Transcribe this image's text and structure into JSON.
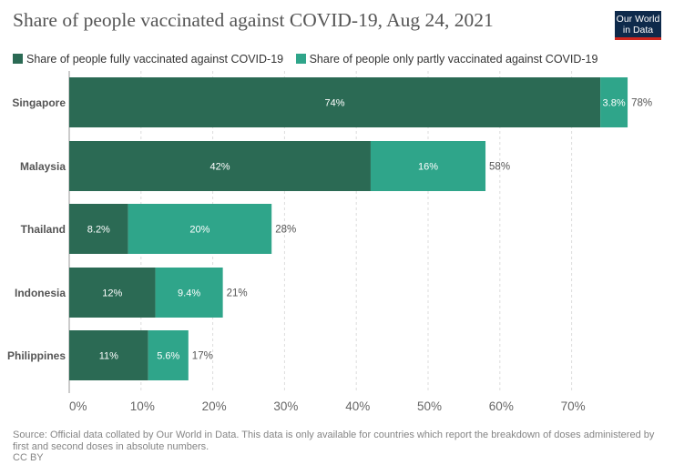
{
  "title": "Share of people vaccinated against COVID-19, Aug 24, 2021",
  "logo": {
    "line1": "Our World",
    "line2": "in Data"
  },
  "footer": {
    "source": "Source: Official data collated by Our World in Data. This data is only available for countries which report the breakdown of doses administered by first and second doses in absolute numbers.",
    "license": "CC BY"
  },
  "colors": {
    "fully": "#2b6a54",
    "partly": "#2fa58a",
    "grid": "#dddddd",
    "axis": "#666666"
  },
  "chart_data": {
    "type": "bar",
    "orientation": "horizontal",
    "stacked": true,
    "categories": [
      "Singapore",
      "Malaysia",
      "Thailand",
      "Indonesia",
      "Philippines"
    ],
    "series": [
      {
        "name": "Share of people fully vaccinated against COVID-19",
        "values": [
          74,
          42,
          8.2,
          12,
          11
        ],
        "labels": [
          "74%",
          "42%",
          "8.2%",
          "12%",
          "11%"
        ]
      },
      {
        "name": "Share of people only partly vaccinated against COVID-19",
        "values": [
          3.8,
          16,
          20,
          9.4,
          5.6
        ],
        "labels": [
          "3.8%",
          "16%",
          "20%",
          "9.4%",
          "5.6%"
        ]
      }
    ],
    "totals": [
      78,
      58,
      28,
      21,
      17
    ],
    "total_labels": [
      "78%",
      "58%",
      "28%",
      "21%",
      "17%"
    ],
    "xlim": [
      0,
      80
    ],
    "xticks": [
      0,
      10,
      20,
      30,
      40,
      50,
      60,
      70
    ],
    "xtick_labels": [
      "0%",
      "10%",
      "20%",
      "30%",
      "40%",
      "50%",
      "60%",
      "70%"
    ],
    "grid": "vertical-dashed",
    "legend_position": "top"
  }
}
